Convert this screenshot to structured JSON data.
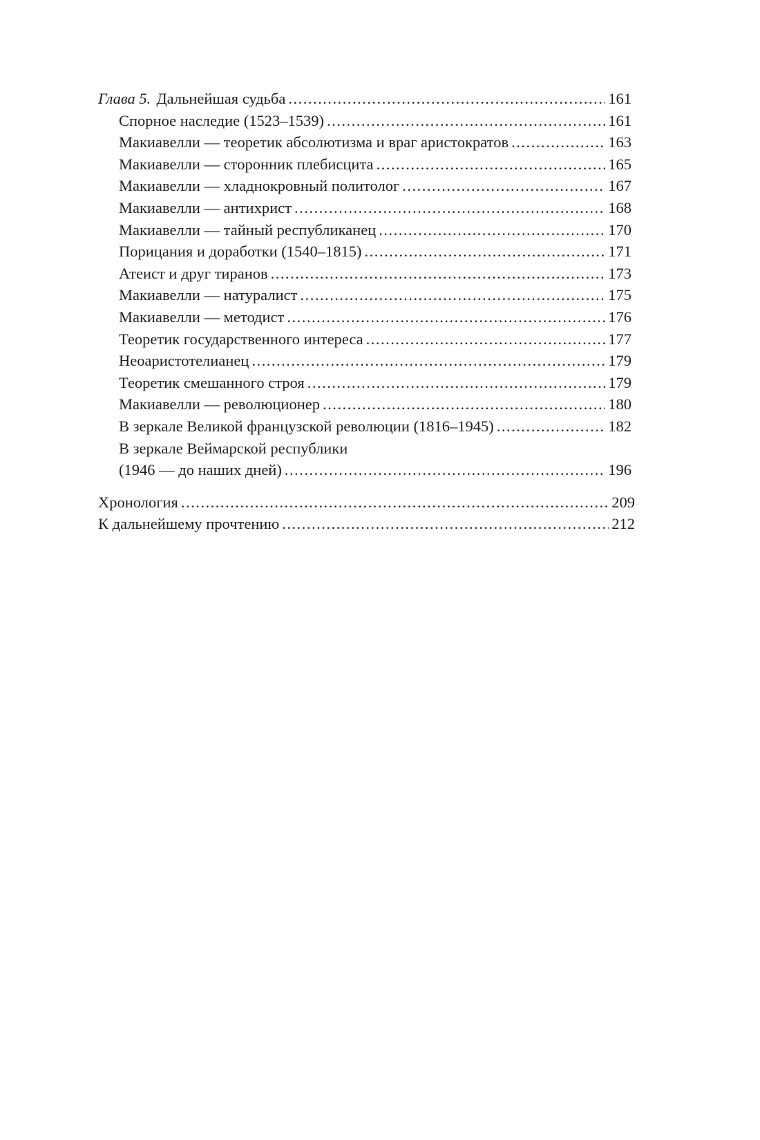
{
  "chapter": {
    "label": "Глава 5.",
    "title": "Дальнейшая судьба",
    "page": "161"
  },
  "entries": [
    {
      "title": "Спорное наследие (1523–1539)",
      "page": "161"
    },
    {
      "title": "Макиавелли — теоретик абсолютизма и враг аристократов",
      "page": "163"
    },
    {
      "title": "Макиавелли — сторонник плебисцита",
      "page": "165"
    },
    {
      "title": "Макиавелли — хладнокровный политолог",
      "page": "167"
    },
    {
      "title": "Макиавелли — антихрист",
      "page": "168"
    },
    {
      "title": "Макиавелли — тайный республиканец",
      "page": "170"
    },
    {
      "title": "Порицания и доработки (1540–1815)",
      "page": "171"
    },
    {
      "title": "Атеист и друг тиранов",
      "page": "173"
    },
    {
      "title": "Макиавелли — натуралист",
      "page": "175"
    },
    {
      "title": "Макиавелли — методист",
      "page": "176"
    },
    {
      "title": "Теоретик государственного интереса",
      "page": "177"
    },
    {
      "title": "Неоаристотелианец",
      "page": "179"
    },
    {
      "title": "Теоретик смешанного строя",
      "page": "179"
    },
    {
      "title": "Макиавелли — революционер",
      "page": "180"
    },
    {
      "title": "В зеркале Великой французской революции (1816–1945)",
      "page": "182"
    }
  ],
  "multiline_entry": {
    "line1": "В зеркале Веймарской республики",
    "line2": "(1946 — до наших дней)",
    "page": "196"
  },
  "back_matter": [
    {
      "title": "Хронология",
      "page": "209"
    },
    {
      "title": "К дальнейшему прочтению",
      "page": "212"
    }
  ]
}
